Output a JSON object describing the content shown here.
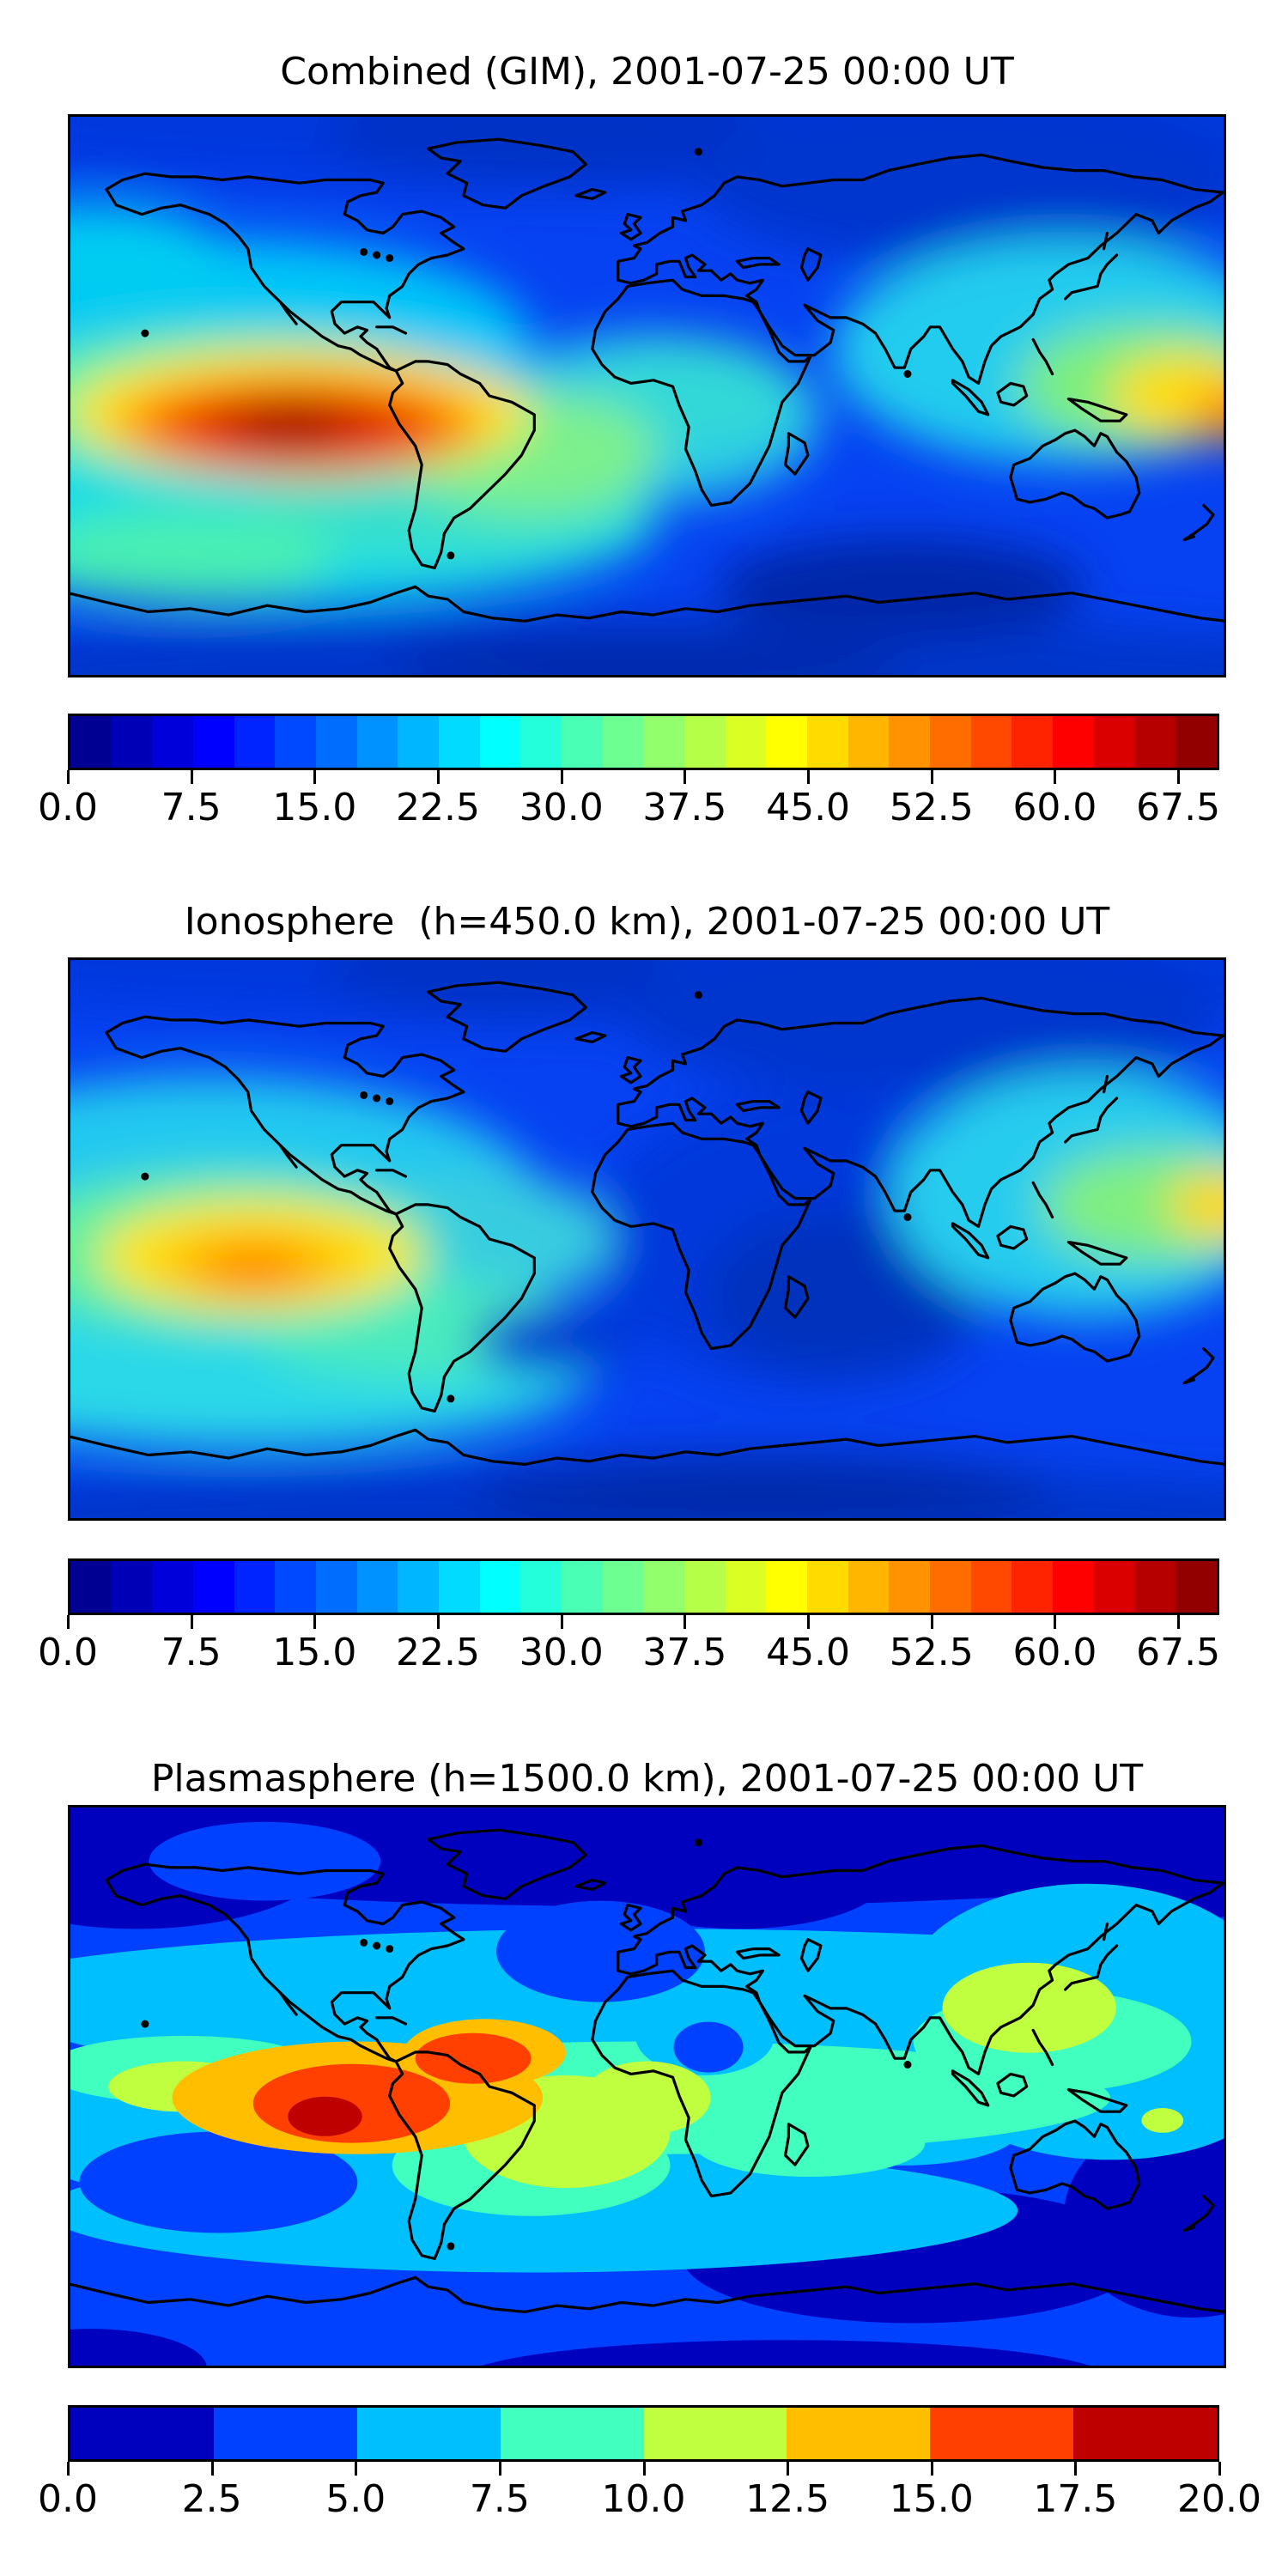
{
  "figure": {
    "description": "Three stacked global TEC contour maps (equirectangular world projection) with discrete jet colorbars",
    "background": "#ffffff"
  },
  "panels": [
    {
      "title": "Combined (GIM), 2001-07-25 00:00 UT",
      "map_name": "map-combined-gim",
      "colorbar": {
        "vmin": 0,
        "vmax": 70,
        "step": 2.5,
        "n_segments": 28,
        "tick_values": [
          0,
          7.5,
          15,
          22.5,
          30,
          37.5,
          45,
          52.5,
          60,
          67.5
        ],
        "tick_labels": [
          "0.0",
          "7.5",
          "15.0",
          "22.5",
          "30.0",
          "37.5",
          "45.0",
          "52.5",
          "60.0",
          "67.5"
        ]
      }
    },
    {
      "title": "Ionosphere  (h=450.0 km), 2001-07-25 00:00 UT",
      "map_name": "map-ionosphere",
      "colorbar": {
        "vmin": 0,
        "vmax": 70,
        "step": 2.5,
        "n_segments": 28,
        "tick_values": [
          0,
          7.5,
          15,
          22.5,
          30,
          37.5,
          45,
          52.5,
          60,
          67.5
        ],
        "tick_labels": [
          "0.0",
          "7.5",
          "15.0",
          "22.5",
          "30.0",
          "37.5",
          "45.0",
          "52.5",
          "60.0",
          "67.5"
        ]
      }
    },
    {
      "title": "Plasmasphere (h=1500.0 km), 2001-07-25 00:00 UT",
      "map_name": "map-plasmasphere",
      "colorbar": {
        "vmin": 0,
        "vmax": 20,
        "step": 2.5,
        "n_segments": 8,
        "tick_values": [
          0,
          2.5,
          5,
          7.5,
          10,
          12.5,
          15,
          17.5,
          20
        ],
        "tick_labels": [
          "0.0",
          "2.5",
          "5.0",
          "7.5",
          "10.0",
          "12.5",
          "15.0",
          "17.5",
          "20.0"
        ]
      }
    }
  ],
  "chart_data": [
    {
      "type": "heatmap",
      "title": "Combined (GIM), 2001-07-25 00:00 UT",
      "projection": "equirectangular",
      "lon_range": [
        -180,
        180
      ],
      "lat_range": [
        -90,
        90
      ],
      "colormap": "jet",
      "levels": {
        "min": 0,
        "max": 70,
        "step": 2.5
      },
      "colorbar_ticks": [
        0,
        7.5,
        15,
        22.5,
        30,
        37.5,
        45,
        52.5,
        60,
        67.5
      ],
      "features": [
        {
          "name": "primary-maximum",
          "value_approx": 70,
          "lon": -111,
          "lat": -11,
          "note": "dark-red core in eastern Pacific west of Peru, surrounded by red/orange/yellow rings"
        },
        {
          "name": "secondary-maximum",
          "value_approx": 47,
          "lon": 172,
          "lat": -8,
          "note": "yellow-orange patch at right edge near New Guinea / east of Australia"
        },
        {
          "name": "mid-latitude-cyan-green-band",
          "value_approx": 27,
          "note": "cyan/green band across Pacific and equatorial Atlantic"
        },
        {
          "name": "low-background",
          "value_approx": 10,
          "note": "blue over Eurasia, Indian Ocean, poles; darkest navy patches in far south ocean"
        }
      ]
    },
    {
      "type": "heatmap",
      "title": "Ionosphere  (h=450.0 km), 2001-07-25 00:00 UT",
      "projection": "equirectangular",
      "lon_range": [
        -180,
        180
      ],
      "lat_range": [
        -90,
        90
      ],
      "colormap": "jet",
      "levels": {
        "min": 0,
        "max": 70,
        "step": 2.5
      },
      "colorbar_ticks": [
        0,
        7.5,
        15,
        22.5,
        30,
        37.5,
        45,
        52.5,
        60,
        67.5
      ],
      "features": [
        {
          "name": "primary-maximum",
          "value_approx": 57,
          "lon": -122,
          "lat": -10,
          "note": "orange core with gold/yellow rings in eastern Pacific"
        },
        {
          "name": "secondary-maximum",
          "value_approx": 45,
          "lon": 178,
          "lat": -4,
          "note": "small yellow patch at right edge near New Guinea"
        },
        {
          "name": "minimum-region",
          "value_approx": 7,
          "note": "dark blue over Indian Ocean / southern Africa sector and poles"
        }
      ]
    },
    {
      "type": "heatmap",
      "title": "Plasmasphere (h=1500.0 km), 2001-07-25 00:00 UT",
      "projection": "equirectangular",
      "lon_range": [
        -180,
        180
      ],
      "lat_range": [
        -90,
        90
      ],
      "colormap": "jet",
      "levels": {
        "min": 0,
        "max": 20,
        "step": 2.5
      },
      "colorbar_ticks": [
        0,
        2.5,
        5,
        7.5,
        10,
        12.5,
        15,
        17.5,
        20
      ],
      "features": [
        {
          "name": "primary-maximum",
          "value_approx": 20,
          "lon": -100,
          "lat": -9,
          "note": "dark-red core west of Peru with orange ring and second orange lobe over northern South America"
        },
        {
          "name": "equatorial-band",
          "value_approx": 8.75,
          "note": "spring-green band along the geomagnetic equator across all longitudes"
        },
        {
          "name": "secondary-maximum",
          "value_approx": 11,
          "lon": 120,
          "lat": 25,
          "note": "yellow-green patch over East Asia"
        },
        {
          "name": "polar-minimum",
          "value_approx": 1,
          "note": "dark blue bands at high northern and southern latitudes"
        }
      ]
    }
  ]
}
